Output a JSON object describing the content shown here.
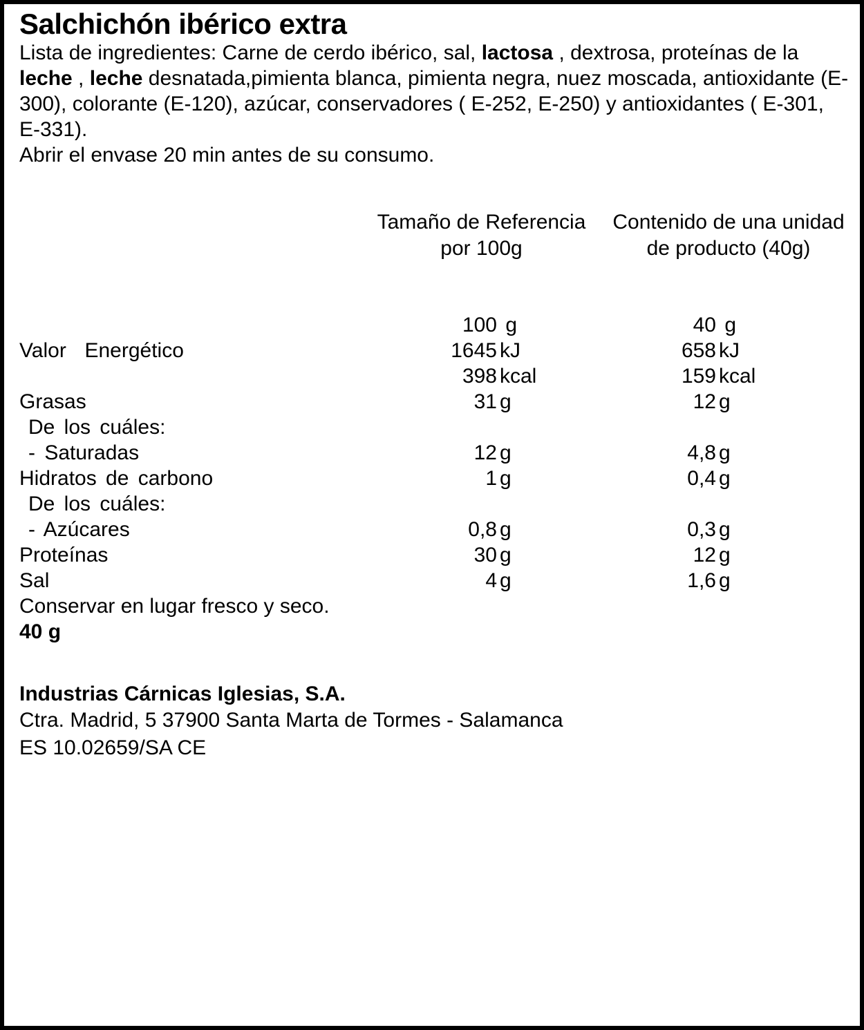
{
  "title": "Salchichón ibérico extra",
  "ingredients": {
    "segments": [
      {
        "text": "Lista de ingredientes: Carne de cerdo ibérico, sal, ",
        "bold": false
      },
      {
        "text": "lactosa",
        "bold": true
      },
      {
        "text": " , dextrosa, proteínas de la ",
        "bold": false
      },
      {
        "text": "leche",
        "bold": true
      },
      {
        "text": " , ",
        "bold": false
      },
      {
        "text": "leche",
        "bold": true
      },
      {
        "text": " desnatada,pimienta blanca, pimienta negra, nuez moscada, antioxidante (E-300), colorante (E-120), azúcar, conservadores ( E-252, E-250) y antioxidantes ( E-301, E-331).",
        "bold": false
      }
    ]
  },
  "usage_note": "Abrir el envase 20 min antes de su consumo.",
  "nutrition_table": {
    "column_headers": [
      {
        "line1": "Tamaño de Referencia",
        "line2": "por 100g"
      },
      {
        "line1": "Contenido de una unidad",
        "line2": "de producto (40g)"
      }
    ],
    "rows": [
      {
        "label": "",
        "indent": false,
        "per100": {
          "value": "100",
          "unit": " g"
        },
        "per_unit": {
          "value": "40",
          "unit": " g"
        }
      },
      {
        "label": "Valor  Energético",
        "indent": false,
        "per100": {
          "value": "1645",
          "unit": "kJ"
        },
        "per_unit": {
          "value": "658",
          "unit": "kJ"
        }
      },
      {
        "label": "",
        "indent": false,
        "per100": {
          "value": "398",
          "unit": "kcal"
        },
        "per_unit": {
          "value": "159",
          "unit": "kcal"
        }
      },
      {
        "label": "Grasas",
        "indent": false,
        "per100": {
          "value": "31",
          "unit": "g"
        },
        "per_unit": {
          "value": "12",
          "unit": "g"
        }
      },
      {
        "label": "De los cuáles:",
        "indent": true,
        "per100": {
          "value": "",
          "unit": ""
        },
        "per_unit": {
          "value": "",
          "unit": ""
        }
      },
      {
        "label": "- Saturadas",
        "indent": true,
        "per100": {
          "value": "12",
          "unit": "g"
        },
        "per_unit": {
          "value": "4,8",
          "unit": "g"
        }
      },
      {
        "label": "Hidratos de carbono",
        "indent": false,
        "per100": {
          "value": "1",
          "unit": "g"
        },
        "per_unit": {
          "value": "0,4",
          "unit": "g"
        }
      },
      {
        "label": "De los cuáles:",
        "indent": true,
        "per100": {
          "value": "",
          "unit": ""
        },
        "per_unit": {
          "value": "",
          "unit": ""
        }
      },
      {
        "label": "- Azúcares",
        "indent": true,
        "per100": {
          "value": "0,8",
          "unit": "g"
        },
        "per_unit": {
          "value": "0,3",
          "unit": "g"
        }
      },
      {
        "label": "Proteínas",
        "indent": false,
        "per100": {
          "value": "30",
          "unit": "g"
        },
        "per_unit": {
          "value": "12",
          "unit": "g"
        }
      },
      {
        "label": "Sal",
        "indent": false,
        "per100": {
          "value": "4",
          "unit": "g"
        },
        "per_unit": {
          "value": "1,6",
          "unit": "g"
        }
      }
    ]
  },
  "storage_note": "Conservar en lugar fresco y seco.",
  "net_weight": "40 g",
  "manufacturer": {
    "name": "Industrias Cárnicas Iglesias, S.A.",
    "address": "Ctra. Madrid, 5 37900 Santa Marta de Tormes - Salamanca",
    "registration": "ES 10.02659/SA CE"
  },
  "colors": {
    "text": "#000000",
    "background": "#ffffff",
    "border": "#000000"
  }
}
